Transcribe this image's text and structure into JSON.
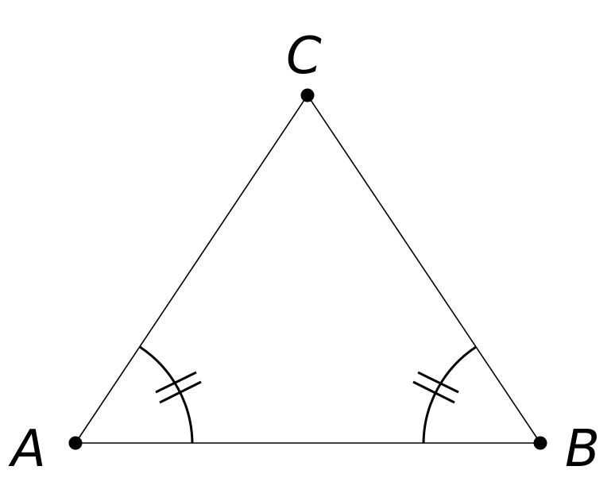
{
  "diagram": {
    "type": "isosceles-triangle",
    "points": [
      {
        "id": "A",
        "label": "A"
      },
      {
        "id": "B",
        "label": "B"
      },
      {
        "id": "C",
        "label": "C"
      }
    ],
    "sides": [
      "AB",
      "BC",
      "CA"
    ],
    "equal_angles": [
      "A",
      "B"
    ],
    "angle_tick_count": 2,
    "stroke_color": "#000000",
    "background_color": "#ffffff"
  }
}
